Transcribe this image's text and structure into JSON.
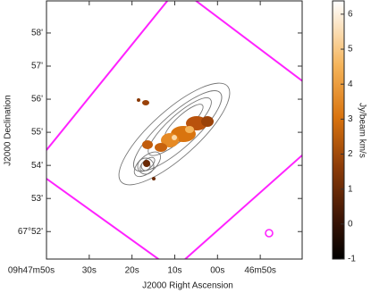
{
  "chart_data": {
    "type": "image",
    "xlabel": "J2000 Right Ascension",
    "ylabel": "J2000 Declination",
    "xlim": [
      100,
      40.2
    ],
    "ylim": [
      51.17,
      58.97
    ],
    "xticks": [
      {
        "value": 110,
        "label": "09h47m50s"
      },
      {
        "value": 90,
        "label": "30s"
      },
      {
        "value": 80,
        "label": "20s"
      },
      {
        "value": 70,
        "label": "10s"
      },
      {
        "value": 60,
        "label": "00s"
      },
      {
        "value": 50,
        "label": "46m50s"
      }
    ],
    "yticks": [
      {
        "value": 58,
        "label": "58'"
      },
      {
        "value": 57,
        "label": "57'"
      },
      {
        "value": 56,
        "label": "56'"
      },
      {
        "value": 55,
        "label": "55'"
      },
      {
        "value": 54,
        "label": "54'"
      },
      {
        "value": 53,
        "label": "53'"
      },
      {
        "value": 52,
        "label": "67°52'"
      }
    ],
    "colorbar": {
      "label": "Jy/beam km/s",
      "lim": [
        -1,
        6.38
      ],
      "ticks": [
        -1,
        0,
        1,
        2,
        3,
        4,
        5,
        6
      ]
    }
  }
}
